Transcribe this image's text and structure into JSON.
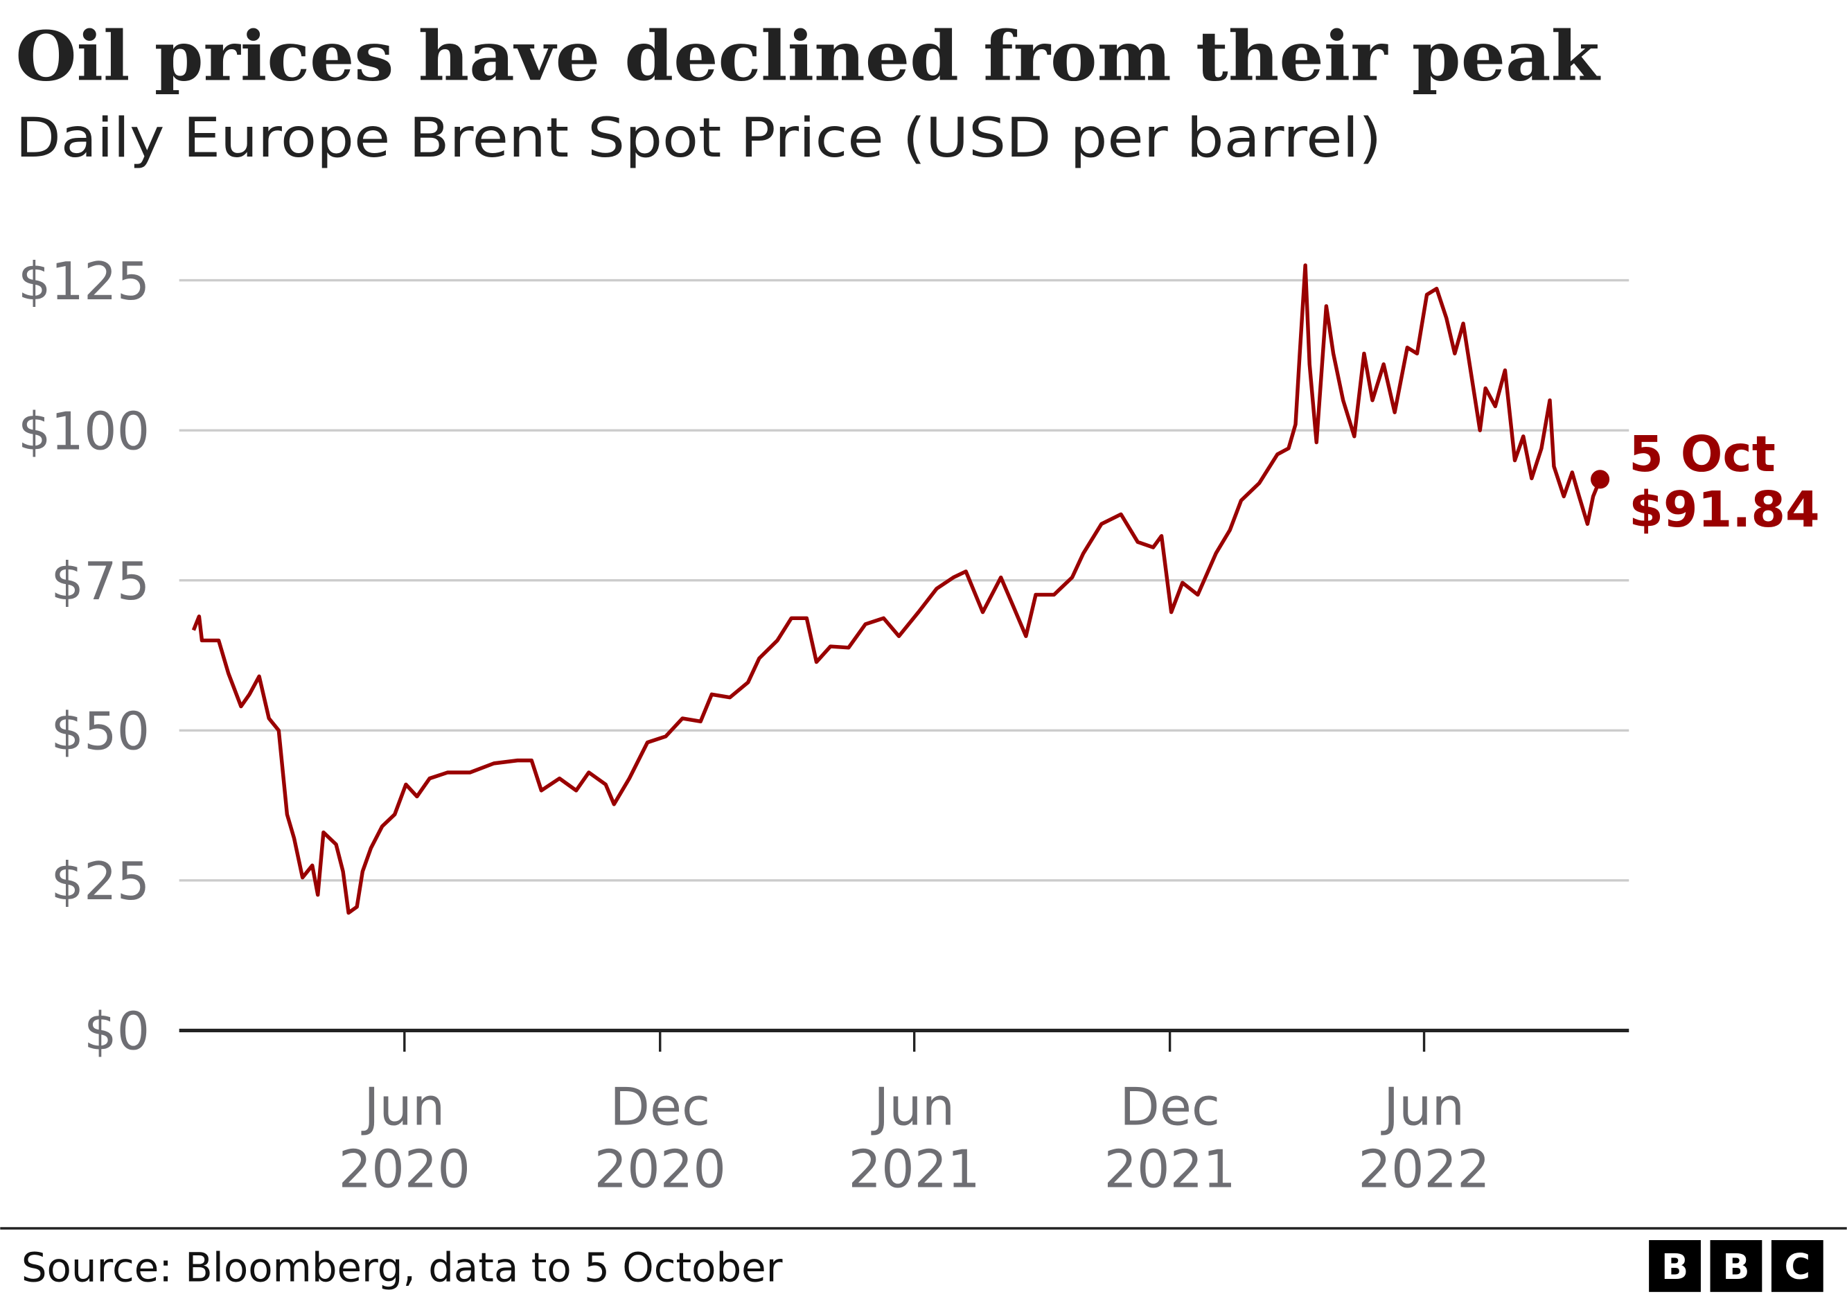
{
  "chart_data": {
    "type": "line",
    "title": "Oil prices have declined from their peak",
    "subtitle": "Daily Europe Brent Spot Price (USD per barrel)",
    "xlabel": "",
    "ylabel": "",
    "ylim": [
      0,
      125
    ],
    "xlim": [
      "2020-01-01",
      "2022-10-05"
    ],
    "grid": true,
    "y_ticks": [
      {
        "value": 0,
        "label": "$0"
      },
      {
        "value": 25,
        "label": "$25"
      },
      {
        "value": 50,
        "label": "$50"
      },
      {
        "value": 75,
        "label": "$75"
      },
      {
        "value": 100,
        "label": "$100"
      },
      {
        "value": 125,
        "label": "$125"
      }
    ],
    "x_ticks": [
      {
        "date": "2020-06-01",
        "month": "Jun",
        "year": "2020"
      },
      {
        "date": "2020-12-01",
        "month": "Dec",
        "year": "2020"
      },
      {
        "date": "2021-06-01",
        "month": "Jun",
        "year": "2021"
      },
      {
        "date": "2021-12-01",
        "month": "Dec",
        "year": "2021"
      },
      {
        "date": "2022-06-01",
        "month": "Jun",
        "year": "2022"
      }
    ],
    "series": [
      {
        "color": "#990000",
        "points": [
          [
            "2020-01-02",
            66.7
          ],
          [
            "2020-01-06",
            69
          ],
          [
            "2020-01-08",
            65
          ],
          [
            "2020-01-20",
            65
          ],
          [
            "2020-01-27",
            59.5
          ],
          [
            "2020-02-05",
            54
          ],
          [
            "2020-02-11",
            56
          ],
          [
            "2020-02-18",
            59
          ],
          [
            "2020-02-25",
            52
          ],
          [
            "2020-03-03",
            50
          ],
          [
            "2020-03-09",
            36
          ],
          [
            "2020-03-14",
            32
          ],
          [
            "2020-03-20",
            25.5
          ],
          [
            "2020-03-27",
            27.5
          ],
          [
            "2020-03-31",
            22.6
          ],
          [
            "2020-04-04",
            33
          ],
          [
            "2020-04-13",
            31
          ],
          [
            "2020-04-18",
            26.5
          ],
          [
            "2020-04-22",
            19.6
          ],
          [
            "2020-04-28",
            20.6
          ],
          [
            "2020-05-02",
            26.5
          ],
          [
            "2020-05-08",
            30.4
          ],
          [
            "2020-05-16",
            34
          ],
          [
            "2020-05-25",
            36
          ],
          [
            "2020-06-02",
            41
          ],
          [
            "2020-06-10",
            39
          ],
          [
            "2020-06-19",
            42
          ],
          [
            "2020-07-02",
            43
          ],
          [
            "2020-07-18",
            43
          ],
          [
            "2020-08-04",
            44.5
          ],
          [
            "2020-08-21",
            45
          ],
          [
            "2020-08-31",
            45
          ],
          [
            "2020-09-07",
            40
          ],
          [
            "2020-09-20",
            42
          ],
          [
            "2020-10-02",
            40
          ],
          [
            "2020-10-11",
            43
          ],
          [
            "2020-10-23",
            41
          ],
          [
            "2020-10-29",
            37.7
          ],
          [
            "2020-11-09",
            42
          ],
          [
            "2020-11-22",
            48
          ],
          [
            "2020-12-05",
            49
          ],
          [
            "2020-12-17",
            52
          ],
          [
            "2020-12-30",
            51.5
          ],
          [
            "2021-01-07",
            56
          ],
          [
            "2021-01-20",
            55.5
          ],
          [
            "2021-02-02",
            58
          ],
          [
            "2021-02-10",
            62
          ],
          [
            "2021-02-23",
            65
          ],
          [
            "2021-03-05",
            68.7
          ],
          [
            "2021-03-16",
            68.7
          ],
          [
            "2021-03-23",
            61.4
          ],
          [
            "2021-04-02",
            64
          ],
          [
            "2021-04-15",
            63.8
          ],
          [
            "2021-04-27",
            67.7
          ],
          [
            "2021-05-10",
            68.7
          ],
          [
            "2021-05-21",
            65.7
          ],
          [
            "2021-06-04",
            69.7
          ],
          [
            "2021-06-17",
            73.6
          ],
          [
            "2021-06-29",
            75.5
          ],
          [
            "2021-07-08",
            76.5
          ],
          [
            "2021-07-20",
            69.7
          ],
          [
            "2021-08-02",
            75.5
          ],
          [
            "2021-08-11",
            70.6
          ],
          [
            "2021-08-20",
            65.7
          ],
          [
            "2021-08-27",
            72.6
          ],
          [
            "2021-09-09",
            72.6
          ],
          [
            "2021-09-22",
            75.5
          ],
          [
            "2021-09-30",
            79.5
          ],
          [
            "2021-10-13",
            84.4
          ],
          [
            "2021-10-27",
            86
          ],
          [
            "2021-11-08",
            81.4
          ],
          [
            "2021-11-19",
            80.5
          ],
          [
            "2021-11-25",
            82.4
          ],
          [
            "2021-12-02",
            69.7
          ],
          [
            "2021-12-10",
            74.6
          ],
          [
            "2021-12-21",
            72.6
          ],
          [
            "2022-01-03",
            79.5
          ],
          [
            "2022-01-13",
            83.4
          ],
          [
            "2022-01-21",
            88.3
          ],
          [
            "2022-02-03",
            91.2
          ],
          [
            "2022-02-16",
            96
          ],
          [
            "2022-02-24",
            97
          ],
          [
            "2022-03-01",
            101
          ],
          [
            "2022-03-04",
            112.8
          ],
          [
            "2022-03-08",
            127.5
          ],
          [
            "2022-03-11",
            111
          ],
          [
            "2022-03-16",
            98
          ],
          [
            "2022-03-23",
            120.7
          ],
          [
            "2022-03-28",
            112.8
          ],
          [
            "2022-04-04",
            105
          ],
          [
            "2022-04-12",
            99
          ],
          [
            "2022-04-19",
            112.8
          ],
          [
            "2022-04-25",
            105
          ],
          [
            "2022-05-03",
            111
          ],
          [
            "2022-05-11",
            103
          ],
          [
            "2022-05-20",
            113.8
          ],
          [
            "2022-05-27",
            112.8
          ],
          [
            "2022-06-03",
            122.6
          ],
          [
            "2022-06-10",
            123.6
          ],
          [
            "2022-06-17",
            118.7
          ],
          [
            "2022-06-23",
            112.8
          ],
          [
            "2022-06-29",
            117.8
          ],
          [
            "2022-07-05",
            108.9
          ],
          [
            "2022-07-11",
            100
          ],
          [
            "2022-07-15",
            107
          ],
          [
            "2022-07-22",
            104
          ],
          [
            "2022-07-29",
            110
          ],
          [
            "2022-08-05",
            95
          ],
          [
            "2022-08-11",
            99
          ],
          [
            "2022-08-17",
            92
          ],
          [
            "2022-08-24",
            97
          ],
          [
            "2022-08-30",
            105
          ],
          [
            "2022-09-02",
            94
          ],
          [
            "2022-09-09",
            89
          ],
          [
            "2022-09-15",
            93
          ],
          [
            "2022-09-20",
            89
          ],
          [
            "2022-09-26",
            84.4
          ],
          [
            "2022-09-30",
            89
          ],
          [
            "2022-10-05",
            91.84
          ]
        ]
      }
    ],
    "annotation": {
      "date": "2022-10-05",
      "value": 91.84,
      "line1": "5 Oct",
      "line2": "$91.84"
    }
  },
  "footer": {
    "source": "Source: Bloomberg, data to 5 October",
    "logo_letters": [
      "B",
      "B",
      "C"
    ]
  }
}
